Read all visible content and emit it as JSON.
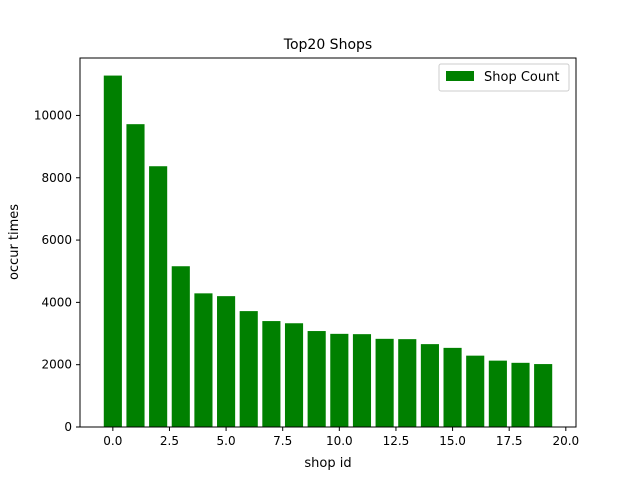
{
  "chart_data": {
    "type": "bar",
    "title": "Top20 Shops",
    "xlabel": "shop id",
    "ylabel": "occur times",
    "x": [
      0,
      1,
      2,
      3,
      4,
      5,
      6,
      7,
      8,
      9,
      10,
      11,
      12,
      13,
      14,
      15,
      16,
      17,
      18,
      19
    ],
    "series": [
      {
        "name": "Shop Count",
        "color": "#008000",
        "values": [
          11280,
          9720,
          8370,
          5160,
          4290,
          4200,
          3720,
          3400,
          3330,
          3080,
          2990,
          2980,
          2830,
          2820,
          2660,
          2540,
          2290,
          2130,
          2060,
          2020
        ]
      }
    ],
    "xlim": [
      -1.45,
      20.45
    ],
    "ylim": [
      0,
      11844
    ],
    "xticks": [
      0,
      2.5,
      5,
      7.5,
      10,
      12.5,
      15,
      17.5,
      20
    ],
    "xtick_labels": [
      "0.0",
      "2.5",
      "5.0",
      "7.5",
      "10.0",
      "12.5",
      "15.0",
      "17.5",
      "20.0"
    ],
    "yticks": [
      0,
      2000,
      4000,
      6000,
      8000,
      10000
    ],
    "ytick_labels": [
      "0",
      "2000",
      "4000",
      "6000",
      "8000",
      "10000"
    ],
    "grid": false,
    "legend_position": "top-right"
  }
}
